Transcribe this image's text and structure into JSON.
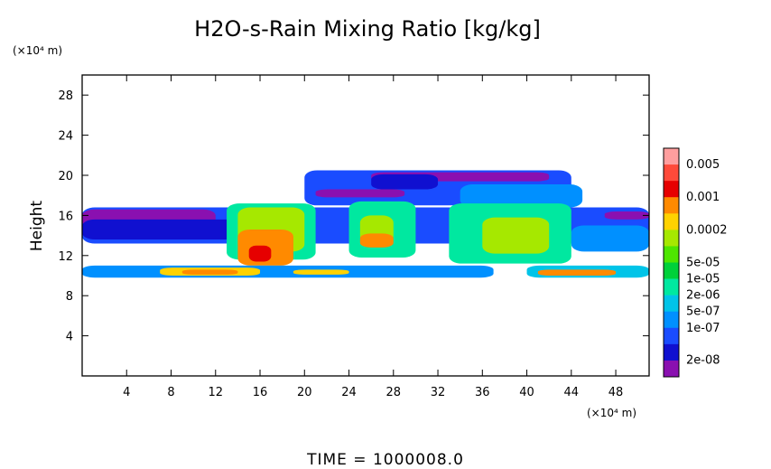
{
  "chart_data": {
    "type": "heatmap",
    "title": "H2O-s-Rain Mixing Ratio [kg/kg]",
    "xlabel": "",
    "ylabel": "Height",
    "x_unit": "(×10⁴ m)",
    "y_unit": "(×10⁴ m)",
    "footer": "TIME  =  1000008.0",
    "xlim": [
      0,
      51
    ],
    "ylim": [
      0,
      30
    ],
    "x_ticks": [
      4,
      8,
      12,
      16,
      20,
      24,
      28,
      32,
      36,
      40,
      44,
      48
    ],
    "y_ticks": [
      4,
      8,
      12,
      16,
      20,
      24,
      28
    ],
    "colorbar": {
      "labels": [
        "0.005",
        "0.001",
        "0.0002",
        "5e-05",
        "1e-05",
        "2e-06",
        "5e-07",
        "1e-07",
        "2e-08"
      ],
      "colors": [
        "#ff9e9e",
        "#ff4a3a",
        "#e60000",
        "#ff8a00",
        "#ffd200",
        "#a6e800",
        "#4ee600",
        "#00d13a",
        "#00e8a0",
        "#00c4e8",
        "#0090ff",
        "#1a4cff",
        "#1010d0",
        "#8a10b0"
      ]
    },
    "regions": [
      {
        "level": 11,
        "x": [
          0,
          51
        ],
        "y": [
          13.2,
          16.8
        ]
      },
      {
        "level": 11,
        "x": [
          20,
          44
        ],
        "y": [
          17,
          20.5
        ]
      },
      {
        "level": 13,
        "x": [
          0,
          12
        ],
        "y": [
          14.8,
          16.6
        ]
      },
      {
        "level": 13,
        "x": [
          21,
          29
        ],
        "y": [
          17.8,
          18.6
        ]
      },
      {
        "level": 13,
        "x": [
          26,
          42
        ],
        "y": [
          19.4,
          20.3
        ]
      },
      {
        "level": 13,
        "x": [
          47,
          51
        ],
        "y": [
          15.6,
          16.4
        ]
      },
      {
        "level": 12,
        "x": [
          26,
          32
        ],
        "y": [
          18.6,
          20.1
        ]
      },
      {
        "level": 12,
        "x": [
          0,
          15
        ],
        "y": [
          13.6,
          15.6
        ]
      },
      {
        "level": 10,
        "x": [
          34,
          45
        ],
        "y": [
          16.8,
          19.1
        ]
      },
      {
        "level": 10,
        "x": [
          44,
          51
        ],
        "y": [
          12.4,
          15.0
        ]
      },
      {
        "level": 8,
        "x": [
          13,
          21
        ],
        "y": [
          11.6,
          17.2
        ]
      },
      {
        "level": 8,
        "x": [
          24,
          30
        ],
        "y": [
          11.8,
          17.4
        ]
      },
      {
        "level": 8,
        "x": [
          33,
          44
        ],
        "y": [
          11.2,
          17.2
        ]
      },
      {
        "level": 5,
        "x": [
          14,
          20
        ],
        "y": [
          12.4,
          16.8
        ]
      },
      {
        "level": 5,
        "x": [
          25,
          28
        ],
        "y": [
          13.2,
          16.0
        ]
      },
      {
        "level": 5,
        "x": [
          36,
          42
        ],
        "y": [
          12.2,
          15.8
        ]
      },
      {
        "level": 3,
        "x": [
          14,
          19
        ],
        "y": [
          11.0,
          14.6
        ]
      },
      {
        "level": 3,
        "x": [
          25,
          28
        ],
        "y": [
          12.8,
          14.2
        ]
      },
      {
        "level": 2,
        "x": [
          15,
          17
        ],
        "y": [
          11.4,
          13.0
        ]
      },
      {
        "level": 10,
        "x": [
          0,
          37
        ],
        "y": [
          9.8,
          11.0
        ]
      },
      {
        "level": 9,
        "x": [
          40,
          51
        ],
        "y": [
          9.8,
          11.0
        ]
      },
      {
        "level": 4,
        "x": [
          7,
          16
        ],
        "y": [
          10.0,
          10.8
        ]
      },
      {
        "level": 3,
        "x": [
          9,
          14
        ],
        "y": [
          10.1,
          10.6
        ]
      },
      {
        "level": 4,
        "x": [
          19,
          24
        ],
        "y": [
          10.1,
          10.6
        ]
      },
      {
        "level": 3,
        "x": [
          41,
          48
        ],
        "y": [
          10.0,
          10.6
        ]
      }
    ]
  }
}
